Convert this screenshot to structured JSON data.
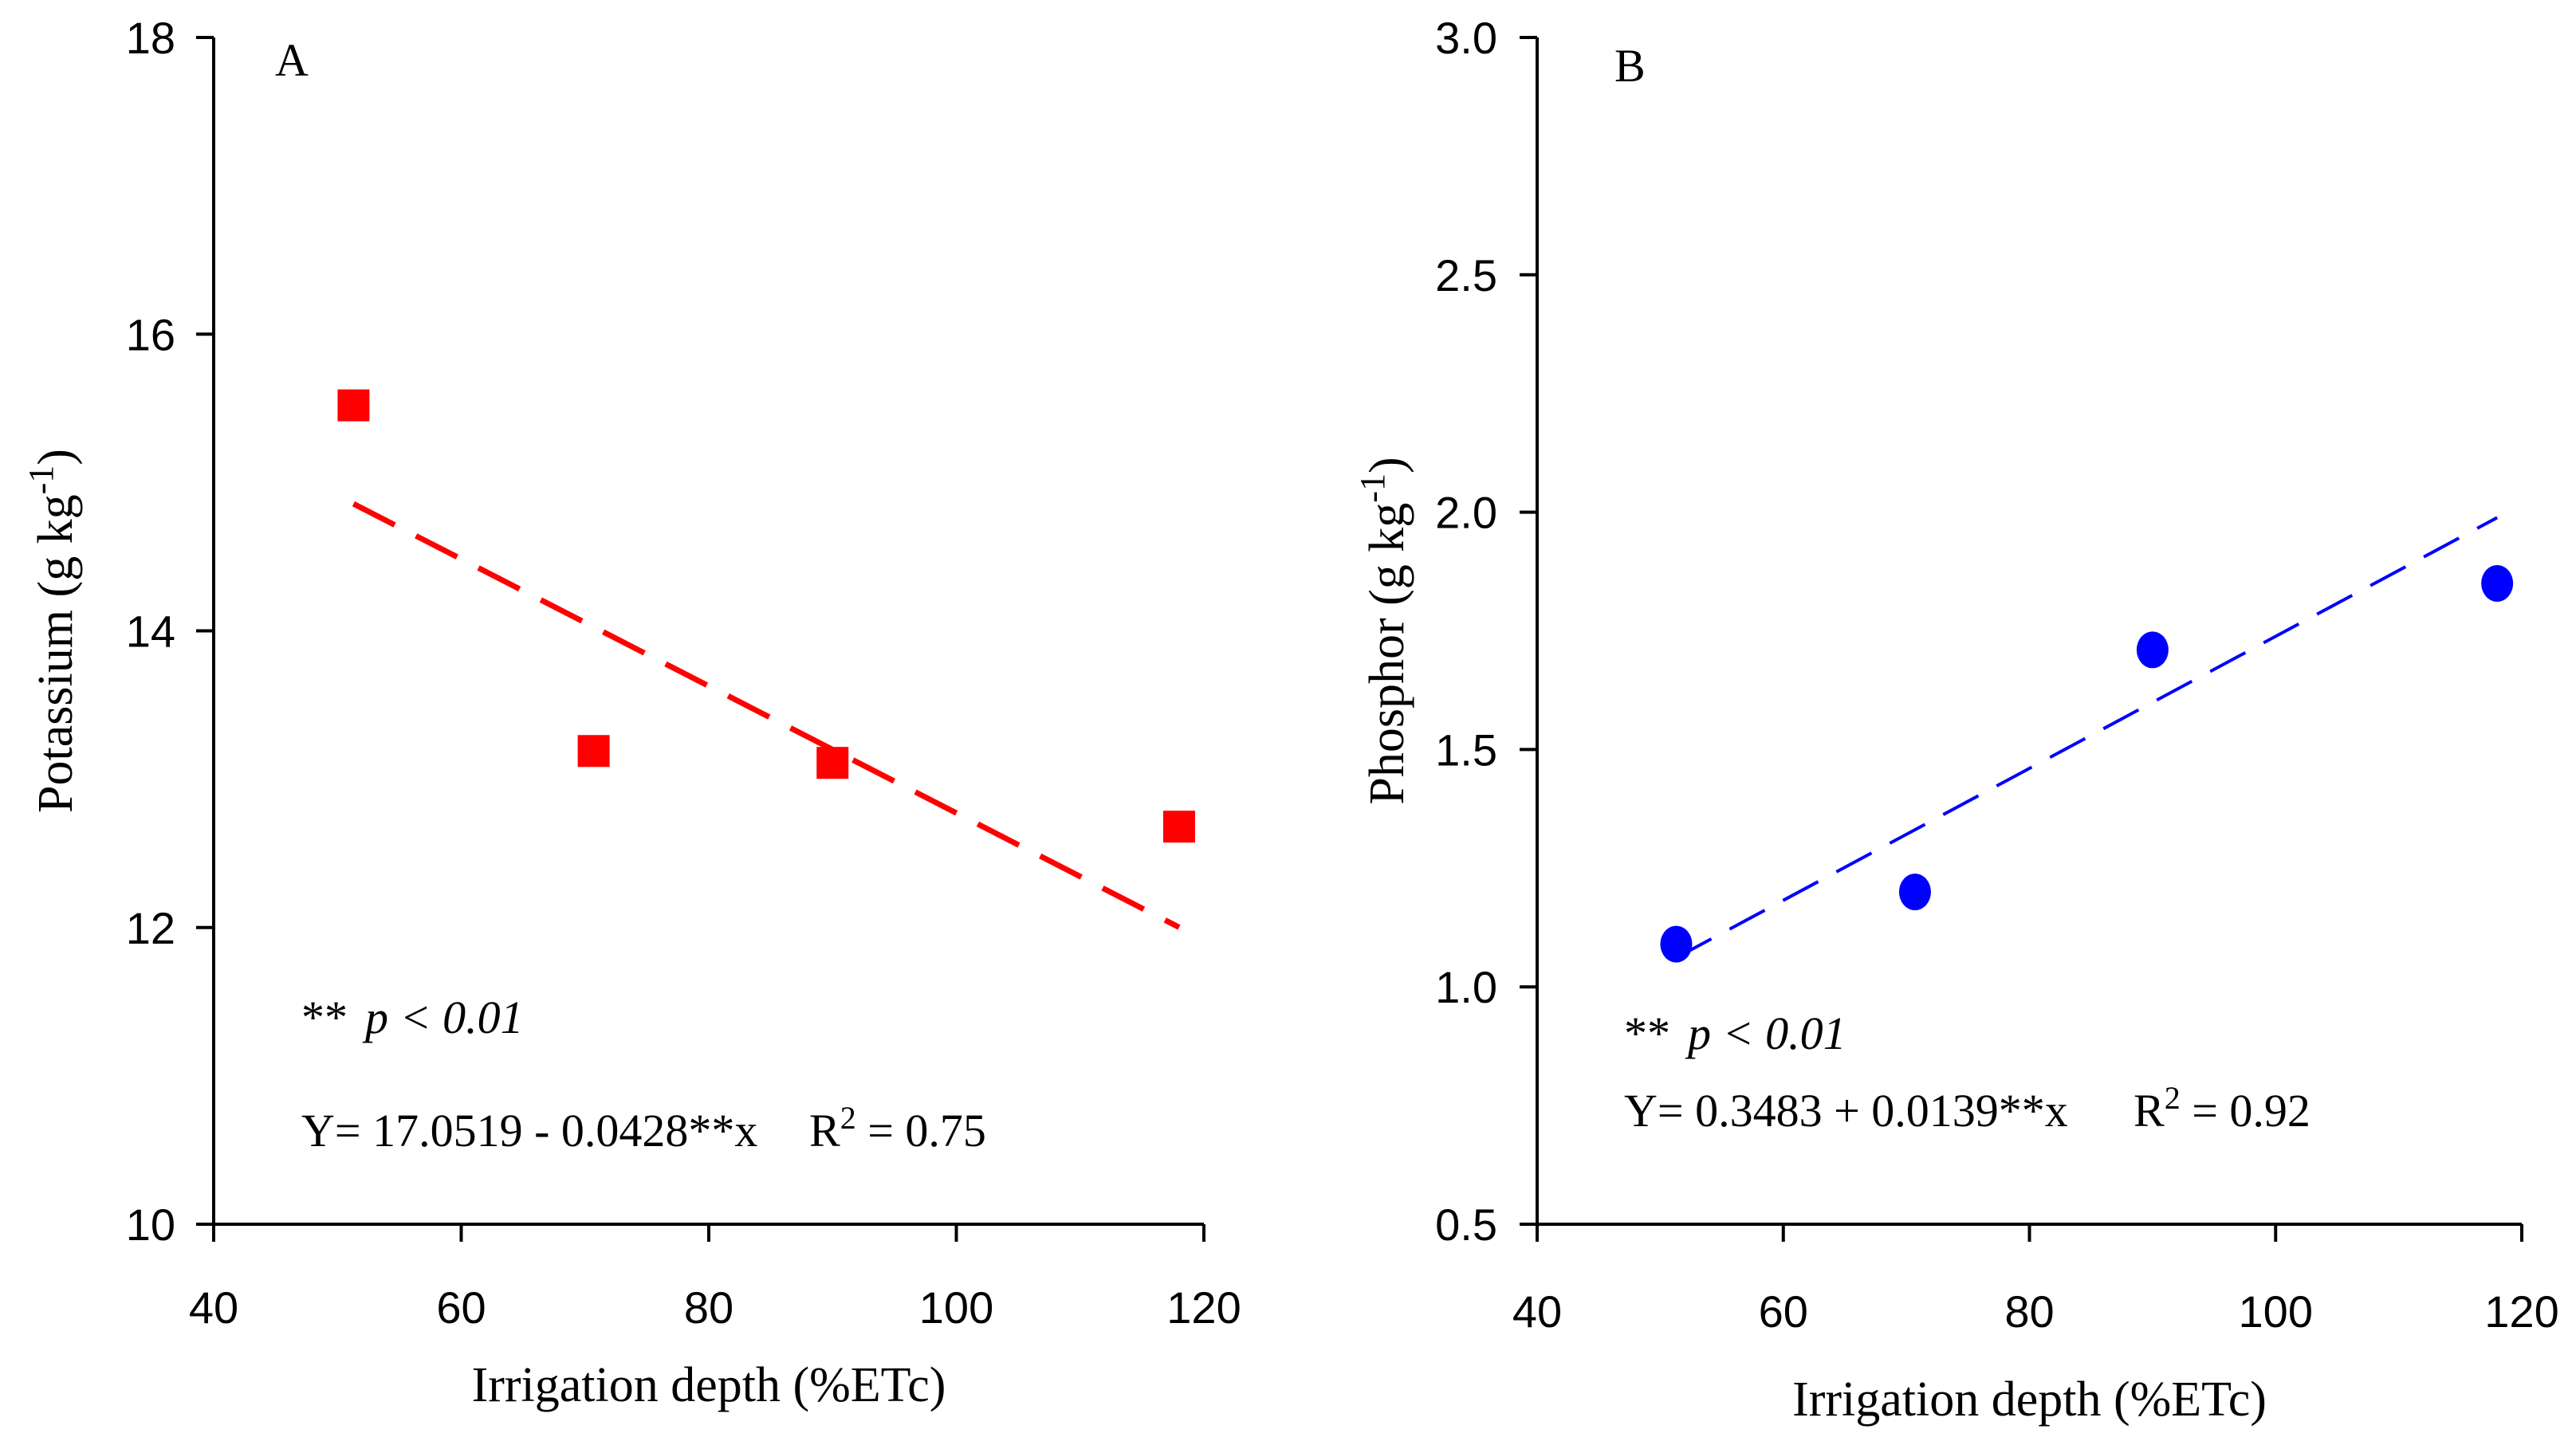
{
  "chart_data": [
    {
      "type": "scatter",
      "panel_label": "A",
      "title": "",
      "xlabel": "Irrigation depth (%ETc)",
      "ylabel": "Potassium (g kg",
      "ylabel_sup": "-1",
      "ylabel_close": ")",
      "xlim": [
        40,
        120
      ],
      "ylim": [
        10,
        18
      ],
      "xticks": [
        40,
        60,
        80,
        100,
        120
      ],
      "yticks": [
        10,
        12,
        14,
        16,
        18
      ],
      "xtick_labels": [
        "40",
        "60",
        "80",
        "100",
        "120"
      ],
      "ytick_labels": [
        "10",
        "12",
        "14",
        "16",
        "18"
      ],
      "marker": "square",
      "color": "#ff0000",
      "series": [
        {
          "name": "Potassium",
          "x": [
            51.3,
            70.7,
            90.0,
            118.0
          ],
          "y": [
            15.52,
            13.19,
            13.11,
            12.68
          ]
        }
      ],
      "trendline": {
        "intercept": 17.0519,
        "slope": -0.0428,
        "x_range": [
          51.3,
          118.0
        ],
        "style": "dashed",
        "color": "#ff0000"
      },
      "significance": {
        "stars": "**",
        "text": "p < 0.01"
      },
      "equation": "Y= 17.0519 - 0.0428**x",
      "r2": {
        "label": "R",
        "sup": "2",
        "value": " = 0.75"
      }
    },
    {
      "type": "scatter",
      "panel_label": "B",
      "title": "",
      "xlabel": "Irrigation depth (%ETc)",
      "ylabel": "Phosphor (g kg",
      "ylabel_sup": "-1",
      "ylabel_close": ")",
      "xlim": [
        40,
        120
      ],
      "ylim": [
        0.5,
        3.0
      ],
      "xticks": [
        40,
        60,
        80,
        100,
        120
      ],
      "yticks": [
        0.5,
        1.0,
        1.5,
        2.0,
        2.5,
        3.0
      ],
      "xtick_labels": [
        "40",
        "60",
        "80",
        "100",
        "120"
      ],
      "ytick_labels": [
        "0.5",
        "1.0",
        "1.5",
        "2.0",
        "2.5",
        "3.0"
      ],
      "marker": "circle",
      "color": "#0000ff",
      "series": [
        {
          "name": "Phosphor",
          "x": [
            51.3,
            70.7,
            90.0,
            118.0
          ],
          "y": [
            1.09,
            1.2,
            1.71,
            1.85
          ]
        }
      ],
      "trendline": {
        "intercept": 0.3483,
        "slope": 0.0139,
        "x_range": [
          51.3,
          118.0
        ],
        "style": "dashed",
        "color": "#0000ff"
      },
      "significance": {
        "stars": "**",
        "text": "p < 0.01"
      },
      "equation": "Y=  0.3483 + 0.0139**x",
      "r2": {
        "label": "R",
        "sup": "2",
        "value": " = 0.92"
      }
    }
  ]
}
